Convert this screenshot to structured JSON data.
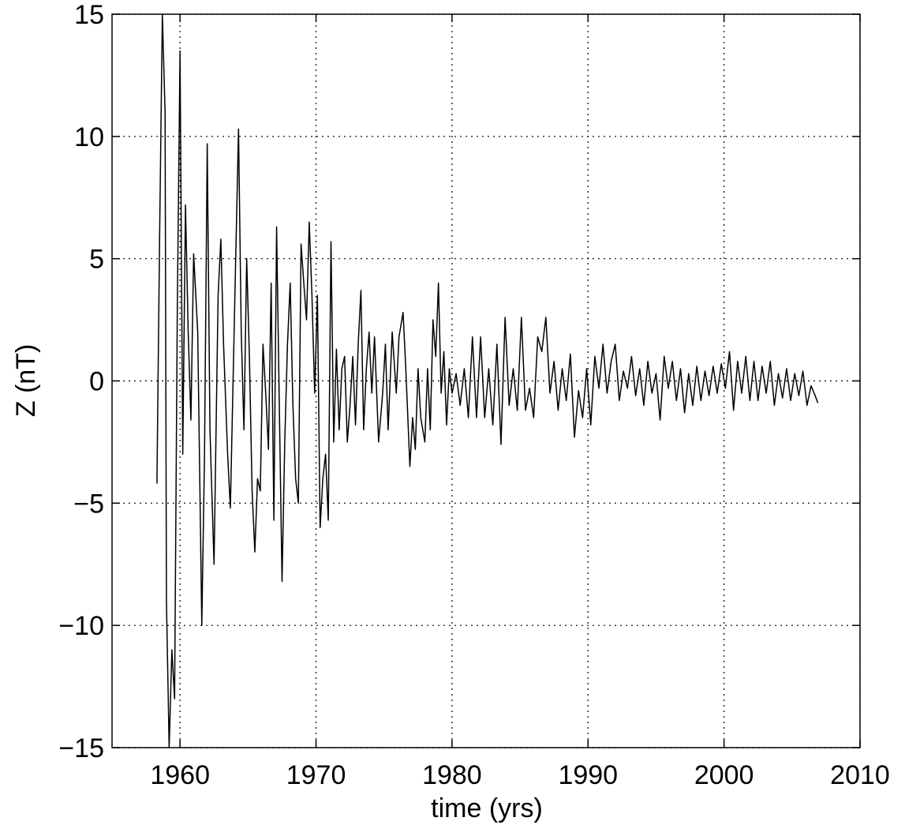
{
  "chart_data": {
    "type": "line",
    "xlabel": "time (yrs)",
    "ylabel": "Z (nT)",
    "color": "#000000",
    "grid": true,
    "xlim": [
      1955,
      2010
    ],
    "xticks": [
      1960,
      1970,
      1980,
      1990,
      2000,
      2010
    ],
    "ylim": [
      -15,
      15
    ],
    "yticks": [
      {
        "value": -15,
        "label": "−15"
      },
      {
        "value": -10,
        "label": "−10"
      },
      {
        "value": -5,
        "label": "−5"
      },
      0,
      5,
      10,
      15
    ],
    "x": [
      1958.3,
      1958.5,
      1958.7,
      1958.9,
      1959.0,
      1959.2,
      1959.4,
      1959.6,
      1959.8,
      1960.0,
      1960.2,
      1960.4,
      1960.6,
      1960.8,
      1961.0,
      1961.3,
      1961.6,
      1961.8,
      1962.0,
      1962.2,
      1962.5,
      1962.8,
      1963.0,
      1963.2,
      1963.5,
      1963.7,
      1963.9,
      1964.1,
      1964.3,
      1964.5,
      1964.7,
      1964.9,
      1965.1,
      1965.3,
      1965.5,
      1965.7,
      1965.9,
      1966.1,
      1966.3,
      1966.5,
      1966.7,
      1966.9,
      1967.1,
      1967.3,
      1967.5,
      1967.7,
      1967.9,
      1968.1,
      1968.3,
      1968.5,
      1968.7,
      1968.9,
      1969.1,
      1969.3,
      1969.5,
      1969.7,
      1969.9,
      1970.1,
      1970.3,
      1970.5,
      1970.7,
      1970.9,
      1971.1,
      1971.3,
      1971.5,
      1971.7,
      1971.9,
      1972.1,
      1972.3,
      1972.5,
      1972.7,
      1972.9,
      1973.1,
      1973.3,
      1973.5,
      1973.7,
      1973.9,
      1974.1,
      1974.3,
      1974.6,
      1974.9,
      1975.1,
      1975.3,
      1975.6,
      1975.9,
      1976.1,
      1976.4,
      1976.6,
      1976.9,
      1977.1,
      1977.3,
      1977.5,
      1977.7,
      1978.0,
      1978.2,
      1978.4,
      1978.6,
      1978.8,
      1979.0,
      1979.2,
      1979.4,
      1979.6,
      1979.8,
      1980.0,
      1980.3,
      1980.6,
      1980.9,
      1981.2,
      1981.5,
      1981.8,
      1982.1,
      1982.4,
      1982.7,
      1983.0,
      1983.3,
      1983.6,
      1983.9,
      1984.2,
      1984.5,
      1984.8,
      1985.1,
      1985.4,
      1985.7,
      1986.0,
      1986.3,
      1986.6,
      1986.9,
      1987.2,
      1987.5,
      1987.8,
      1988.1,
      1988.4,
      1988.7,
      1989.0,
      1989.3,
      1989.6,
      1989.9,
      1990.2,
      1990.5,
      1990.8,
      1991.1,
      1991.4,
      1991.7,
      1992.0,
      1992.3,
      1992.6,
      1992.9,
      1993.2,
      1993.5,
      1993.8,
      1994.1,
      1994.4,
      1994.7,
      1995.0,
      1995.3,
      1995.6,
      1995.9,
      1996.2,
      1996.5,
      1996.8,
      1997.1,
      1997.4,
      1997.7,
      1998.0,
      1998.3,
      1998.6,
      1998.9,
      1999.2,
      1999.5,
      1999.8,
      2000.1,
      2000.4,
      2000.7,
      2001.0,
      2001.3,
      2001.6,
      2001.9,
      2002.2,
      2002.5,
      2002.8,
      2003.1,
      2003.4,
      2003.7,
      2004.0,
      2004.3,
      2004.6,
      2004.9,
      2005.2,
      2005.5,
      2005.8,
      2006.1,
      2006.4,
      2006.7,
      2006.9
    ],
    "values": [
      -4.2,
      6,
      15,
      11,
      -9,
      -15,
      -11,
      -13,
      3,
      13.5,
      -3,
      7.2,
      2,
      -1.6,
      5.2,
      2,
      -10,
      -3,
      9.7,
      -2,
      -7.5,
      3.5,
      5.8,
      1.5,
      -3,
      -5.2,
      0,
      5.2,
      10.3,
      2,
      -2,
      5,
      1,
      -4.5,
      -7,
      -4,
      -4.5,
      1.5,
      -0.5,
      -2.8,
      4,
      -5.7,
      6.3,
      -1,
      -8.2,
      -2.5,
      1.5,
      4,
      -1,
      -4,
      -5,
      5.6,
      4,
      2.5,
      6.5,
      3.5,
      -0.5,
      3.5,
      -6,
      -4,
      -3,
      -5.7,
      5.7,
      -2.5,
      1.3,
      -2,
      0.5,
      1,
      -2.5,
      -1,
      1,
      -1.8,
      1.5,
      3.7,
      -2,
      0.5,
      2,
      -0.5,
      1.8,
      -2.5,
      -0.5,
      1.5,
      -2,
      2,
      -0.5,
      1.8,
      2.8,
      0.5,
      -3.5,
      -1.5,
      -2.8,
      0.5,
      -1.5,
      -2.5,
      0.5,
      -2,
      2.5,
      1,
      4,
      -0.5,
      1.2,
      -1.8,
      0.5,
      -0.5,
      0.3,
      -1,
      0.5,
      -1.5,
      1.8,
      -1.5,
      1.8,
      -1.5,
      0.5,
      -1.8,
      1.5,
      -2.6,
      2.6,
      -1,
      0.5,
      -1.2,
      2.6,
      -1.2,
      -0.3,
      -1.5,
      1.8,
      1.2,
      2.6,
      -0.5,
      0.8,
      -1.2,
      0.5,
      -0.8,
      1.1,
      -2.3,
      -0.4,
      -1.5,
      0.5,
      -1.8,
      1,
      -0.3,
      1.5,
      -0.5,
      0.8,
      1.5,
      -0.8,
      0.4,
      -0.3,
      1,
      -0.6,
      0.5,
      -1,
      0.8,
      -0.5,
      0.3,
      -1.6,
      1,
      -0.3,
      0.8,
      -0.8,
      0.5,
      -1.3,
      0.3,
      -1,
      0.6,
      -0.8,
      0.4,
      -0.6,
      0.6,
      -0.5,
      0.7,
      -0.3,
      1.2,
      -1.2,
      0.8,
      -0.5,
      1,
      -0.8,
      0.8,
      -0.8,
      0.6,
      -0.5,
      0.8,
      -1,
      0.3,
      -0.7,
      0.5,
      -0.8,
      0.3,
      -0.6,
      0.4,
      -1,
      -0.2,
      -0.6,
      -0.9
    ]
  }
}
